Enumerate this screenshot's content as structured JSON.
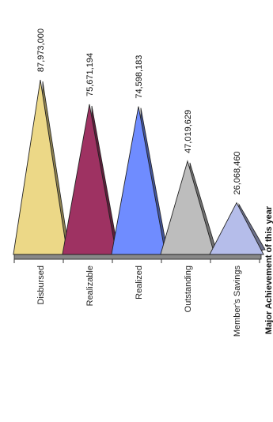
{
  "chart_data": {
    "type": "bar",
    "title": "Major Achievement of this year",
    "xlabel": "",
    "ylabel": "",
    "categories": [
      "Disbursed",
      "Realizable",
      "Realized",
      "Outstanding",
      "Member's Savings"
    ],
    "values": [
      87973000,
      75671194,
      74598183,
      47019629,
      26068460
    ],
    "data_labels": [
      "87,973,000",
      "75,671,194",
      "74,598,183",
      "47,019,629",
      "26,068,460"
    ],
    "colors": [
      "#ecd887",
      "#9e3262",
      "#6f8cff",
      "#bdbdbd",
      "#b5bdea"
    ],
    "ylim": [
      0,
      100000000
    ],
    "grid": false,
    "legend": "none"
  }
}
